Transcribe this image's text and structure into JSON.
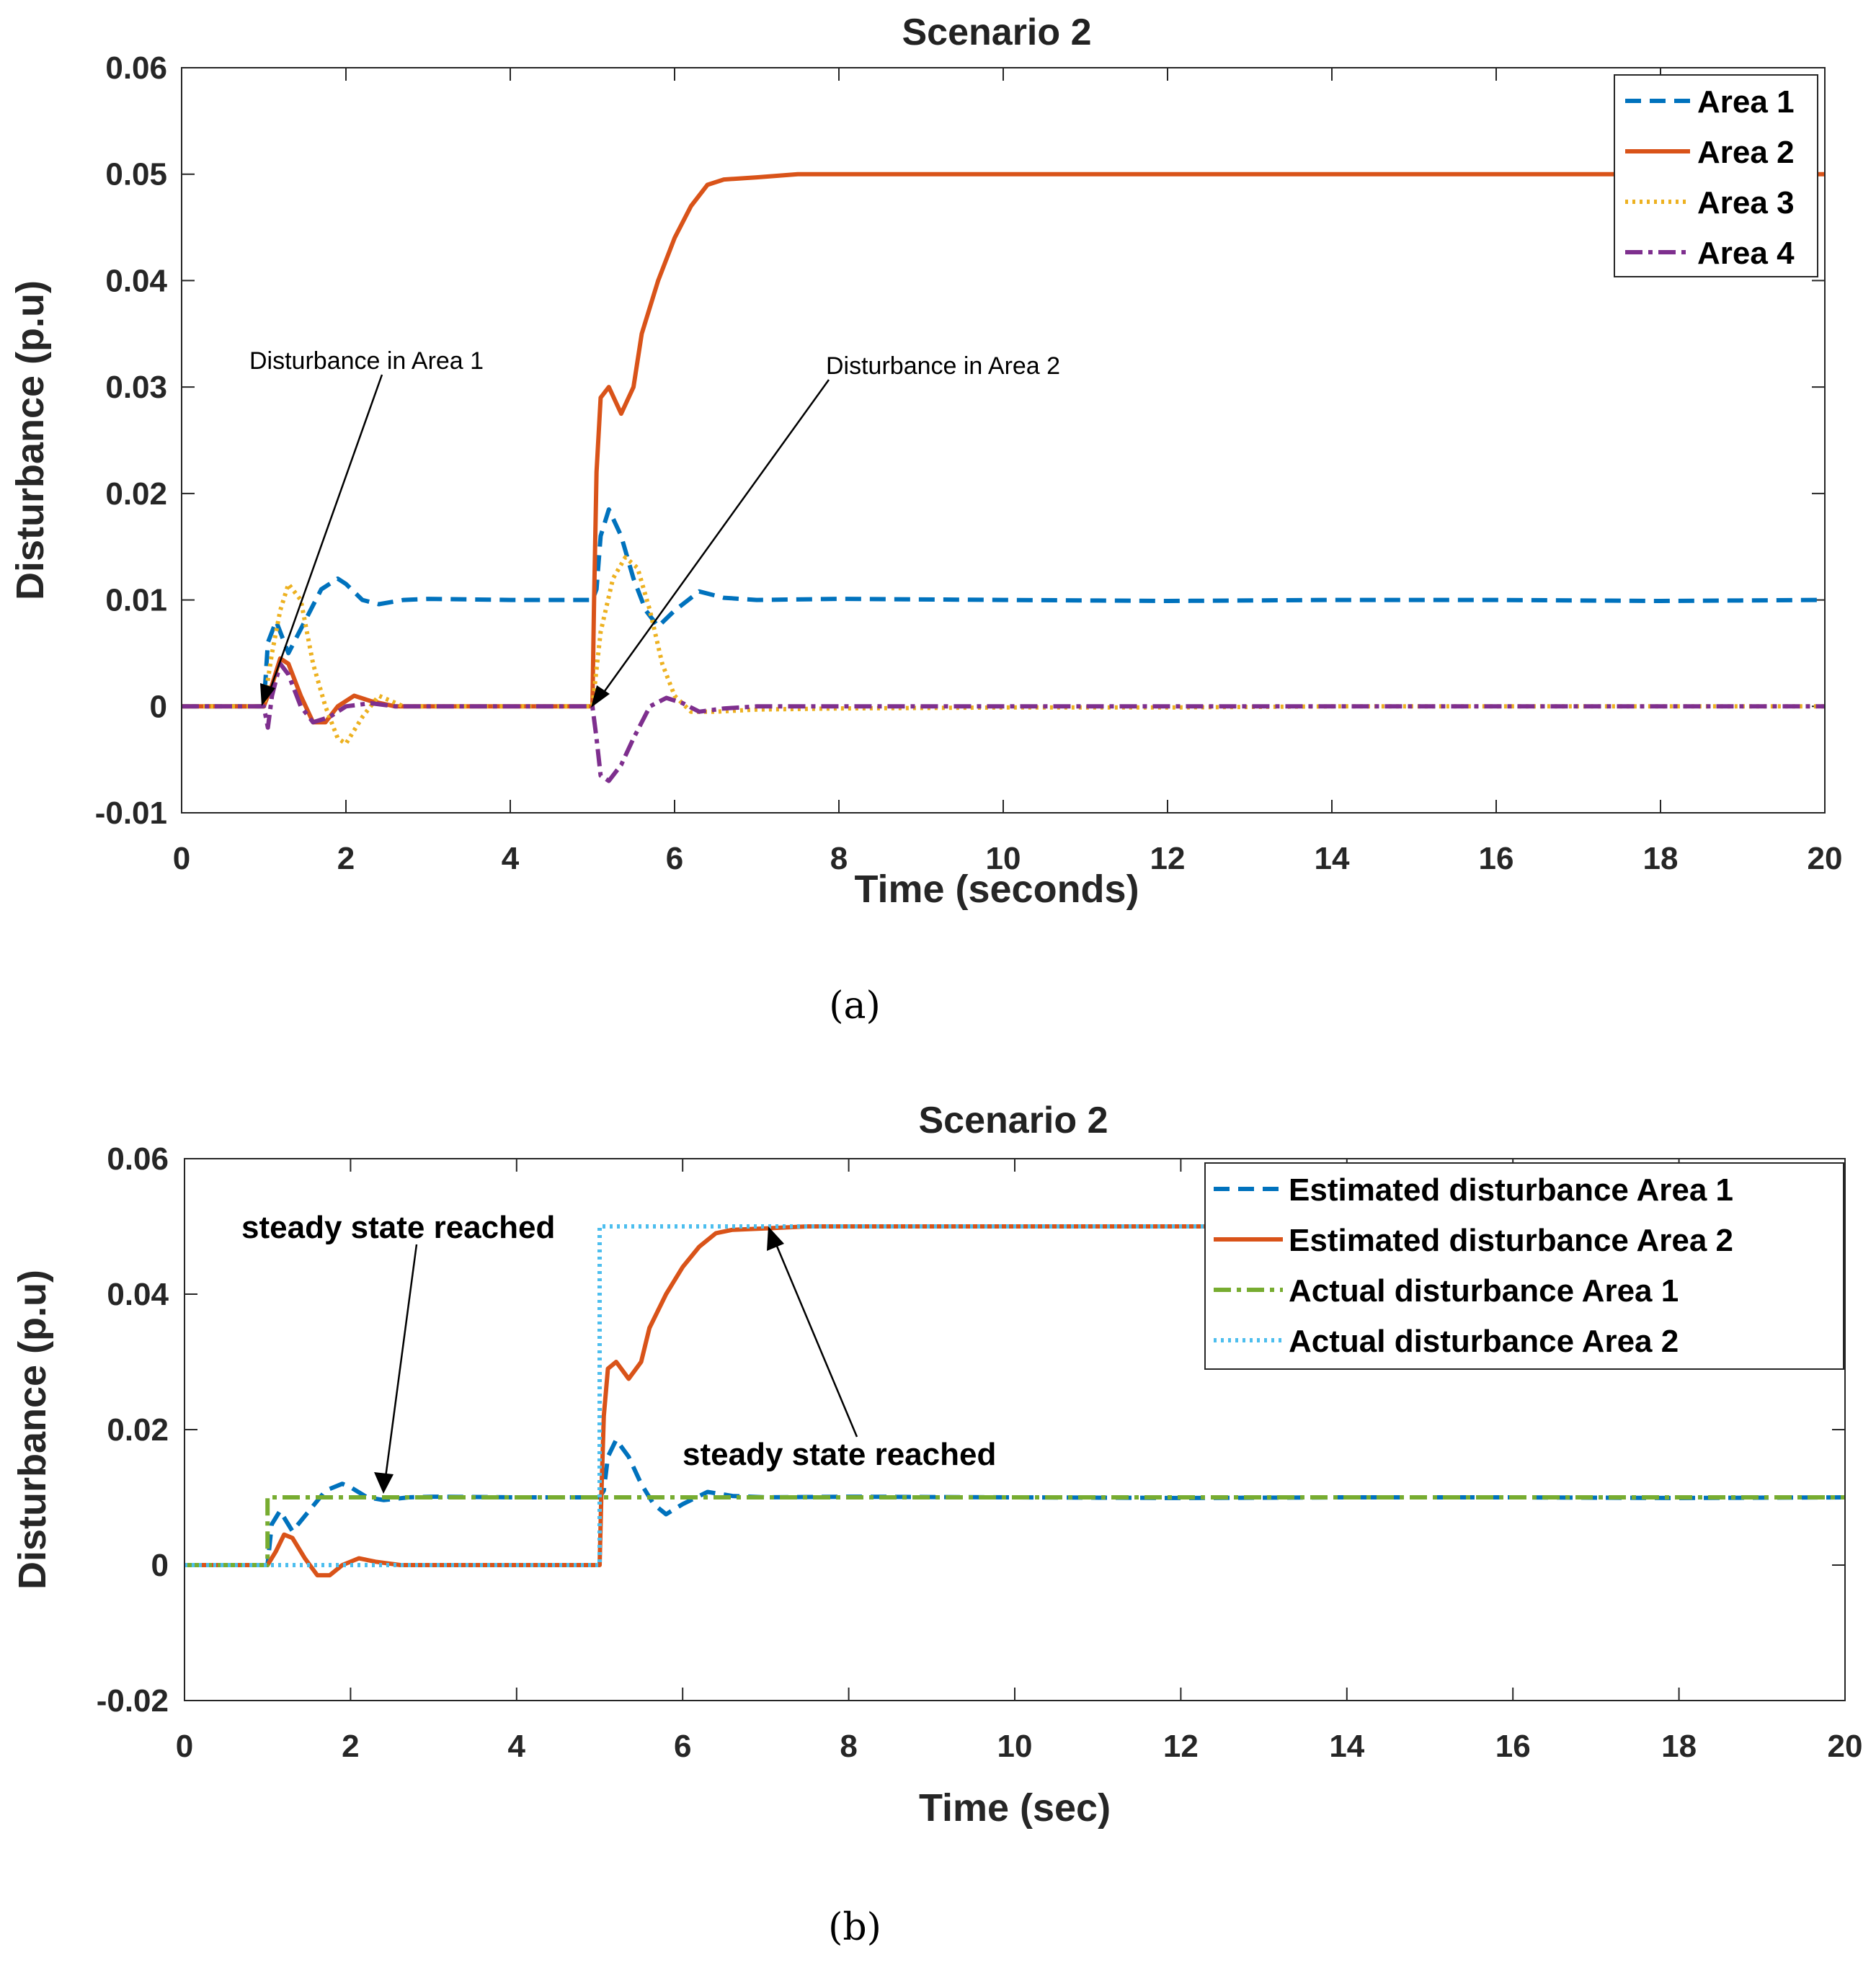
{
  "chart_data": [
    {
      "type": "line",
      "title": "Scenario 2",
      "xlabel": "Time (seconds)",
      "ylabel": "Disturbance  (p.u)",
      "xlim": [
        0,
        20
      ],
      "ylim": [
        -0.01,
        0.06
      ],
      "xticks": [
        "0",
        "2",
        "4",
        "6",
        "8",
        "10",
        "12",
        "14",
        "16",
        "18",
        "20"
      ],
      "yticks": [
        "-0.01",
        "0",
        "0.01",
        "0.02",
        "0.03",
        "0.04",
        "0.05",
        "0.06"
      ],
      "legend_position": "top-right",
      "caption": "(a)",
      "series": [
        {
          "name": "Area 1",
          "color": "#0072BD",
          "style": "dashed",
          "x": [
            0,
            1.0,
            1.05,
            1.15,
            1.3,
            1.5,
            1.7,
            1.9,
            2.0,
            2.2,
            2.4,
            2.7,
            3.0,
            4.0,
            5.0,
            5.05,
            5.1,
            5.2,
            5.35,
            5.5,
            5.65,
            5.8,
            6.0,
            6.3,
            6.6,
            7.0,
            8,
            10,
            12,
            14,
            16,
            18,
            20
          ],
          "y": [
            0,
            0,
            0.006,
            0.008,
            0.005,
            0.008,
            0.011,
            0.012,
            0.0115,
            0.01,
            0.0096,
            0.01,
            0.0101,
            0.01,
            0.01,
            0.011,
            0.016,
            0.0185,
            0.016,
            0.012,
            0.009,
            0.0075,
            0.009,
            0.0108,
            0.0102,
            0.01,
            0.0101,
            0.01,
            0.0099,
            0.01,
            0.01,
            0.0099,
            0.01
          ]
        },
        {
          "name": "Area 2",
          "color": "#D95319",
          "style": "solid",
          "x": [
            0,
            1.0,
            1.1,
            1.2,
            1.3,
            1.45,
            1.6,
            1.75,
            1.9,
            2.1,
            2.3,
            2.6,
            3.0,
            4.0,
            5.0,
            5.02,
            5.05,
            5.1,
            5.2,
            5.35,
            5.5,
            5.6,
            5.8,
            6.0,
            6.2,
            6.4,
            6.6,
            7.0,
            7.5,
            8,
            10,
            12,
            14,
            16,
            18,
            20
          ],
          "y": [
            0,
            0,
            0.002,
            0.0045,
            0.004,
            0.001,
            -0.0015,
            -0.0015,
            0.0,
            0.001,
            0.0005,
            0.0,
            0.0,
            0.0,
            0.0,
            0.01,
            0.022,
            0.029,
            0.03,
            0.0275,
            0.03,
            0.035,
            0.04,
            0.044,
            0.047,
            0.049,
            0.0495,
            0.0497,
            0.05,
            0.05,
            0.05,
            0.05,
            0.05,
            0.05,
            0.05,
            0.05
          ]
        },
        {
          "name": "Area 3",
          "color": "#EDB120",
          "style": "dotted",
          "x": [
            0,
            1.0,
            1.1,
            1.2,
            1.3,
            1.45,
            1.6,
            1.75,
            1.9,
            2.0,
            2.2,
            2.4,
            2.7,
            3.0,
            4.0,
            5.0,
            5.1,
            5.25,
            5.4,
            5.55,
            5.7,
            5.85,
            6.0,
            6.2,
            6.5,
            7.0,
            8,
            10,
            12,
            14,
            16,
            18,
            20
          ],
          "y": [
            0,
            0,
            0.005,
            0.009,
            0.0115,
            0.01,
            0.004,
            0.0,
            -0.003,
            -0.0035,
            -0.001,
            0.001,
            0.0,
            0.0,
            0.0,
            0.0,
            0.007,
            0.012,
            0.014,
            0.013,
            0.009,
            0.004,
            0.001,
            -0.0005,
            -0.0005,
            -0.0003,
            -0.0002,
            -0.0001,
            -0.0001,
            0.0,
            0.0,
            0.0,
            0.0
          ]
        },
        {
          "name": "Area 4",
          "color": "#7E2F8E",
          "style": "dashdot",
          "x": [
            0,
            1.0,
            1.05,
            1.1,
            1.2,
            1.3,
            1.45,
            1.6,
            1.8,
            2.0,
            2.3,
            2.6,
            3.0,
            4.0,
            5.0,
            5.05,
            5.1,
            5.2,
            5.35,
            5.5,
            5.7,
            5.9,
            6.1,
            6.3,
            6.6,
            7.0,
            8,
            10,
            12,
            14,
            16,
            18,
            20
          ],
          "y": [
            0,
            0,
            -0.002,
            0.001,
            0.004,
            0.003,
            0.0,
            -0.0015,
            -0.001,
            0.0,
            0.0003,
            0.0,
            0.0,
            0.0,
            0.0,
            -0.003,
            -0.0065,
            -0.007,
            -0.0055,
            -0.003,
            0.0,
            0.0008,
            0.0003,
            -0.0005,
            -0.0002,
            0.0,
            0.0,
            0.0,
            0.0,
            0.0,
            0.0,
            0.0,
            0.0
          ]
        }
      ],
      "annotations": [
        {
          "text": "Disturbance in Area 1",
          "x": 1.0,
          "y": 0.0
        },
        {
          "text": "Disturbance in Area 2",
          "x": 5.0,
          "y": 0.0
        }
      ]
    },
    {
      "type": "line",
      "title": "Scenario 2",
      "xlabel": "Time (sec)",
      "ylabel": "Disturbance (p.u)",
      "xlim": [
        0,
        20
      ],
      "ylim": [
        -0.02,
        0.06
      ],
      "xticks": [
        "0",
        "2",
        "4",
        "6",
        "8",
        "10",
        "12",
        "14",
        "16",
        "18",
        "20"
      ],
      "yticks": [
        "-0.02",
        "0",
        "0.02",
        "0.04",
        "0.06"
      ],
      "legend_position": "top-right",
      "caption": "(b)",
      "series": [
        {
          "name": "Estimated disturbance Area 1",
          "color": "#0072BD",
          "style": "dashed",
          "x": [
            0,
            1.0,
            1.05,
            1.15,
            1.3,
            1.5,
            1.7,
            1.9,
            2.0,
            2.2,
            2.4,
            2.7,
            3.0,
            4.0,
            5.0,
            5.05,
            5.1,
            5.2,
            5.35,
            5.5,
            5.65,
            5.8,
            6.0,
            6.3,
            6.6,
            7.0,
            8,
            10,
            12,
            14,
            16,
            18,
            20
          ],
          "y": [
            0,
            0,
            0.006,
            0.008,
            0.005,
            0.008,
            0.011,
            0.012,
            0.0115,
            0.01,
            0.0096,
            0.01,
            0.0101,
            0.01,
            0.01,
            0.011,
            0.016,
            0.0185,
            0.016,
            0.012,
            0.009,
            0.0075,
            0.009,
            0.0108,
            0.0102,
            0.01,
            0.0101,
            0.01,
            0.0099,
            0.01,
            0.01,
            0.0099,
            0.01
          ]
        },
        {
          "name": "Estimated disturbance Area 2",
          "color": "#D95319",
          "style": "solid",
          "x": [
            0,
            1.0,
            1.1,
            1.2,
            1.3,
            1.45,
            1.6,
            1.75,
            1.9,
            2.1,
            2.3,
            2.6,
            3.0,
            4.0,
            5.0,
            5.02,
            5.05,
            5.1,
            5.2,
            5.35,
            5.5,
            5.6,
            5.8,
            6.0,
            6.2,
            6.4,
            6.6,
            7.0,
            7.5,
            8,
            10,
            12,
            14,
            16,
            18,
            20
          ],
          "y": [
            0,
            0,
            0.002,
            0.0045,
            0.004,
            0.001,
            -0.0015,
            -0.0015,
            0.0,
            0.001,
            0.0005,
            0.0,
            0.0,
            0.0,
            0.0,
            0.01,
            0.022,
            0.029,
            0.03,
            0.0275,
            0.03,
            0.035,
            0.04,
            0.044,
            0.047,
            0.049,
            0.0495,
            0.0497,
            0.05,
            0.05,
            0.05,
            0.05,
            0.05,
            0.05,
            0.05,
            0.05
          ]
        },
        {
          "name": "Actual disturbance Area 1",
          "color": "#77AC30",
          "style": "dashdot",
          "x": [
            0,
            1.0,
            1.0,
            20
          ],
          "y": [
            0,
            0,
            0.01,
            0.01
          ]
        },
        {
          "name": "Actual disturbance Area 2",
          "color": "#4DBEEE",
          "style": "dotted",
          "x": [
            0,
            5.0,
            5.0,
            20
          ],
          "y": [
            0,
            0,
            0.05,
            0.05
          ]
        }
      ],
      "annotations": [
        {
          "text": "steady state reached",
          "x": 2.4,
          "y": 0.01
        },
        {
          "text": "steady state reached",
          "x": 7.0,
          "y": 0.05
        }
      ]
    }
  ]
}
